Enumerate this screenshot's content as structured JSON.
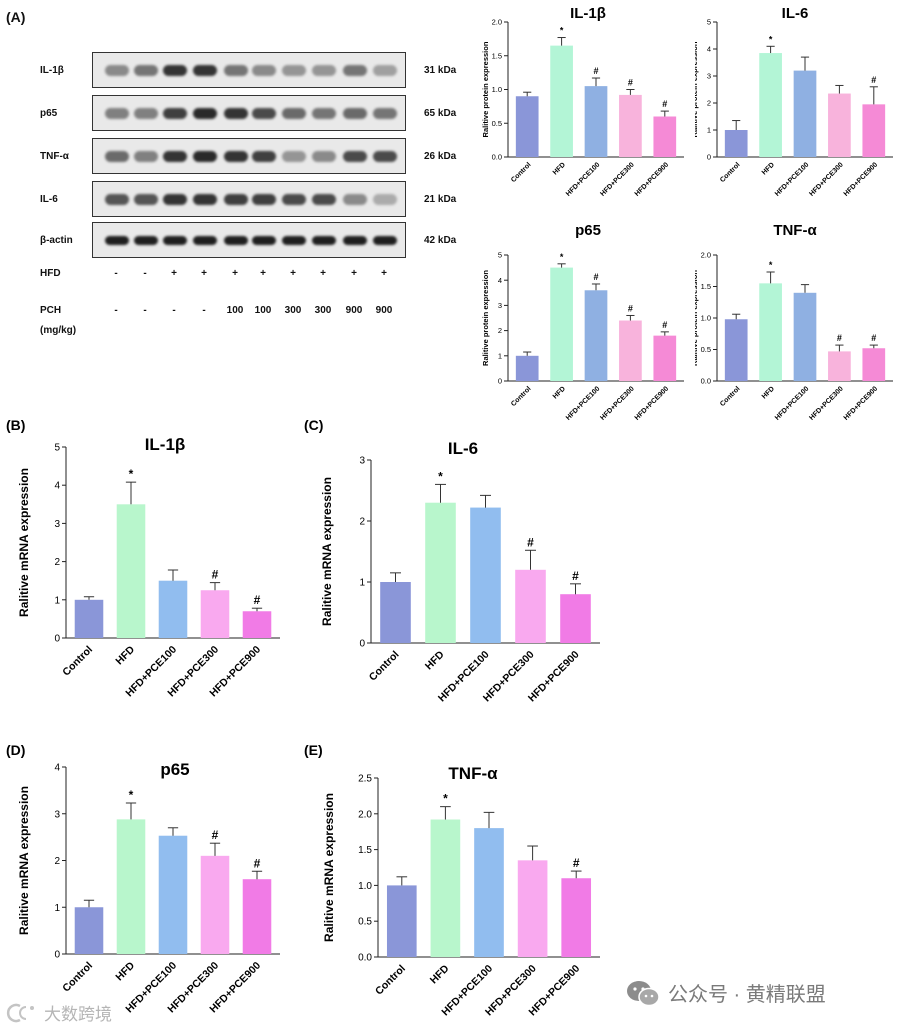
{
  "panel_A": {
    "letter": "(A)",
    "blots": [
      {
        "name": "IL-1β",
        "kda": "31 kDa",
        "intensity": [
          0.45,
          0.55,
          0.85,
          0.85,
          0.55,
          0.45,
          0.4,
          0.4,
          0.55,
          0.35
        ]
      },
      {
        "name": "p65",
        "kda": "65 kDa",
        "intensity": [
          0.5,
          0.5,
          0.8,
          0.9,
          0.85,
          0.75,
          0.6,
          0.55,
          0.6,
          0.55
        ]
      },
      {
        "name": "TNF-α",
        "kda": "26 kDa",
        "intensity": [
          0.6,
          0.5,
          0.85,
          0.9,
          0.85,
          0.8,
          0.4,
          0.45,
          0.75,
          0.75
        ]
      },
      {
        "name": "IL-6",
        "kda": "21 kDa",
        "intensity": [
          0.7,
          0.7,
          0.85,
          0.85,
          0.8,
          0.8,
          0.75,
          0.75,
          0.45,
          0.3
        ]
      },
      {
        "name": "β-actin",
        "kda": "42 kDa",
        "intensity": [
          0.95,
          0.95,
          0.95,
          0.95,
          0.95,
          0.95,
          0.95,
          0.95,
          0.95,
          0.95
        ]
      }
    ],
    "hfd_label": "HFD",
    "hfd_signs": [
      "-",
      "-",
      "+",
      "+",
      "+",
      "+",
      "+",
      "+",
      "+",
      "+"
    ],
    "pch_label": "PCH",
    "pch_unit": "(mg/kg)",
    "pch_doses": [
      "-",
      "-",
      "-",
      "-",
      "100",
      "100",
      "300",
      "300",
      "900",
      "900"
    ]
  },
  "colors": {
    "Control": "#8a96d8",
    "HFD": "#b3f5d6",
    "HFD+PCE100": "#8fb0e2",
    "HFD+PCE300": "#f8b3dc",
    "HFD+PCE900": "#f58ad6",
    "HFD_B": "#b8f6cc",
    "PCE100_B": "#91bdef",
    "PCE300_B": "#f9a9ef",
    "PCE900_B": "#f17be6"
  },
  "chart_data": [
    {
      "id": "a1",
      "type": "bar",
      "title": "IL-1β",
      "ylabel": "Ralitive protein expression",
      "categories": [
        "Control",
        "HFD",
        "HFD+PCE100",
        "HFD+PCE300",
        "HFD+PCE900"
      ],
      "values": [
        0.9,
        1.65,
        1.05,
        0.92,
        0.6
      ],
      "errors": [
        0.06,
        0.12,
        0.12,
        0.08,
        0.08
      ],
      "marks": [
        "",
        "*",
        "#",
        "#",
        "#"
      ],
      "ylim": [
        0,
        2
      ],
      "yticks": [
        0,
        0.5,
        1.0,
        1.5,
        2.0
      ],
      "tick_labels": [
        "0.0",
        "0.5",
        "1.0",
        "1.5",
        "2.0"
      ]
    },
    {
      "id": "a2",
      "type": "bar",
      "title": "IL-6",
      "ylabel": "Ralitive protein expression",
      "categories": [
        "Control",
        "HFD",
        "HFD+PCE100",
        "HFD+PCE300",
        "HFD+PCE900"
      ],
      "values": [
        1.0,
        3.85,
        3.2,
        2.35,
        1.95
      ],
      "errors": [
        0.35,
        0.25,
        0.5,
        0.3,
        0.65
      ],
      "marks": [
        "",
        "*",
        "",
        "",
        "#"
      ],
      "ylim": [
        0,
        5
      ],
      "yticks": [
        0,
        1,
        2,
        3,
        4,
        5
      ],
      "tick_labels": [
        "0",
        "1",
        "2",
        "3",
        "4",
        "5"
      ]
    },
    {
      "id": "a3",
      "type": "bar",
      "title": "p65",
      "ylabel": "Ralitive protein expression",
      "categories": [
        "Control",
        "HFD",
        "HFD+PCE100",
        "HFD+PCE300",
        "HFD+PCE900"
      ],
      "values": [
        1.0,
        4.5,
        3.6,
        2.4,
        1.8
      ],
      "errors": [
        0.15,
        0.15,
        0.25,
        0.2,
        0.15
      ],
      "marks": [
        "",
        "*",
        "#",
        "#",
        "#"
      ],
      "ylim": [
        0,
        5
      ],
      "yticks": [
        0,
        1,
        2,
        3,
        4,
        5
      ],
      "tick_labels": [
        "0",
        "1",
        "2",
        "3",
        "4",
        "5"
      ]
    },
    {
      "id": "a4",
      "type": "bar",
      "title": "TNF-α",
      "ylabel": "Ralitive protein expression",
      "categories": [
        "Control",
        "HFD",
        "HFD+PCE100",
        "HFD+PCE300",
        "HFD+PCE900"
      ],
      "values": [
        0.98,
        1.55,
        1.4,
        0.47,
        0.52
      ],
      "errors": [
        0.08,
        0.18,
        0.13,
        0.1,
        0.05
      ],
      "marks": [
        "",
        "*",
        "",
        "#",
        "#"
      ],
      "ylim": [
        0,
        2
      ],
      "yticks": [
        0,
        0.5,
        1.0,
        1.5,
        2.0
      ],
      "tick_labels": [
        "0.0",
        "0.5",
        "1.0",
        "1.5",
        "2.0"
      ]
    },
    {
      "id": "b",
      "letter": "(B)",
      "type": "bar",
      "title": "IL-1β",
      "ylabel": "Ralitive mRNA expression",
      "categories": [
        "Control",
        "HFD",
        "HFD+PCE100",
        "HFD+PCE300",
        "HFD+PCE900"
      ],
      "values": [
        1.0,
        3.5,
        1.5,
        1.25,
        0.7
      ],
      "errors": [
        0.08,
        0.58,
        0.28,
        0.2,
        0.08
      ],
      "marks": [
        "",
        "*",
        "",
        "#",
        "#"
      ],
      "ylim": [
        0,
        5
      ],
      "yticks": [
        0,
        1,
        2,
        3,
        4,
        5
      ],
      "tick_labels": [
        "0",
        "1",
        "2",
        "3",
        "4",
        "5"
      ]
    },
    {
      "id": "c",
      "letter": "(C)",
      "type": "bar",
      "title": "IL-6",
      "ylabel": "Ralitive mRNA expression",
      "categories": [
        "Control",
        "HFD",
        "HFD+PCE100",
        "HFD+PCE300",
        "HFD+PCE900"
      ],
      "values": [
        1.0,
        2.3,
        2.22,
        1.2,
        0.8
      ],
      "errors": [
        0.15,
        0.3,
        0.2,
        0.32,
        0.17
      ],
      "marks": [
        "",
        "*",
        "",
        "#",
        "#"
      ],
      "ylim": [
        0,
        3
      ],
      "yticks": [
        0,
        1,
        2,
        3
      ],
      "tick_labels": [
        "0",
        "1",
        "2",
        "3"
      ]
    },
    {
      "id": "d",
      "letter": "(D)",
      "type": "bar",
      "title": "p65",
      "ylabel": "Ralitive mRNA expression",
      "categories": [
        "Control",
        "HFD",
        "HFD+PCE100",
        "HFD+PCE300",
        "HFD+PCE900"
      ],
      "values": [
        1.0,
        2.88,
        2.53,
        2.1,
        1.6
      ],
      "errors": [
        0.15,
        0.35,
        0.17,
        0.27,
        0.17
      ],
      "marks": [
        "",
        "*",
        "",
        "#",
        "#"
      ],
      "ylim": [
        0,
        4
      ],
      "yticks": [
        0,
        1,
        2,
        3,
        4
      ],
      "tick_labels": [
        "0",
        "1",
        "2",
        "3",
        "4"
      ]
    },
    {
      "id": "e",
      "letter": "(E)",
      "type": "bar",
      "title": "TNF-α",
      "ylabel": "Ralitive mRNA expression",
      "categories": [
        "Control",
        "HFD",
        "HFD+PCE100",
        "HFD+PCE300",
        "HFD+PCE900"
      ],
      "values": [
        1.0,
        1.92,
        1.8,
        1.35,
        1.1
      ],
      "errors": [
        0.12,
        0.18,
        0.22,
        0.2,
        0.1
      ],
      "marks": [
        "",
        "*",
        "",
        "",
        "#"
      ],
      "ylim": [
        0,
        2.5
      ],
      "yticks": [
        0,
        0.5,
        1.0,
        1.5,
        2.0,
        2.5
      ],
      "tick_labels": [
        "0.0",
        "0.5",
        "1.0",
        "1.5",
        "2.0",
        "2.5"
      ]
    }
  ],
  "watermark": {
    "right_text": "公众号 · 黄精联盟",
    "right_icon": "wechat-icon",
    "left_text": "大数跨境",
    "left_icon": "logo-icon"
  }
}
